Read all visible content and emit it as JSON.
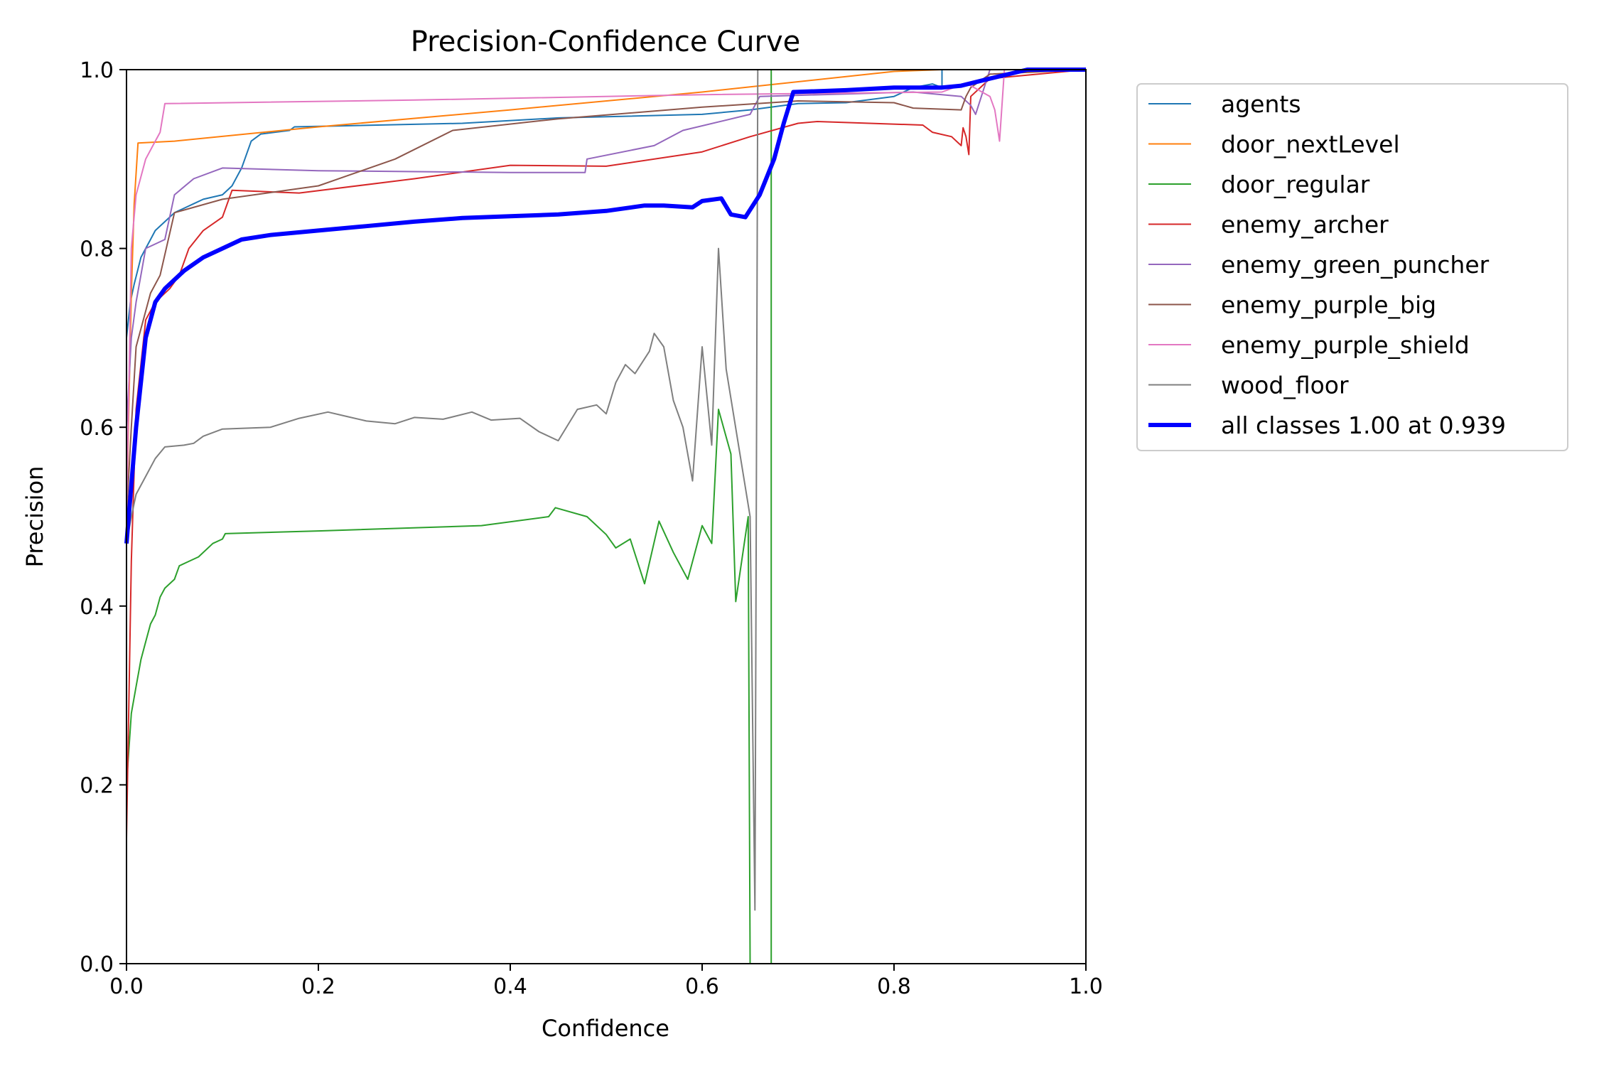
{
  "chart_data": {
    "type": "line",
    "title": "Precision-Confidence Curve",
    "xlabel": "Confidence",
    "ylabel": "Precision",
    "xlim": [
      0,
      1
    ],
    "ylim": [
      0,
      1
    ],
    "xticks": [
      "0.0",
      "0.2",
      "0.4",
      "0.6",
      "0.8",
      "1.0"
    ],
    "yticks": [
      "0.0",
      "0.2",
      "0.4",
      "0.6",
      "0.8",
      "1.0"
    ],
    "grid": false,
    "legend_position": "outside-right-top",
    "series": [
      {
        "name": "agents",
        "color": "#1f77b4",
        "width": 2,
        "points": [
          [
            0.0,
            0.7
          ],
          [
            0.004,
            0.74
          ],
          [
            0.008,
            0.76
          ],
          [
            0.015,
            0.79
          ],
          [
            0.02,
            0.8
          ],
          [
            0.025,
            0.81
          ],
          [
            0.03,
            0.82
          ],
          [
            0.04,
            0.83
          ],
          [
            0.05,
            0.84
          ],
          [
            0.06,
            0.845
          ],
          [
            0.07,
            0.85
          ],
          [
            0.08,
            0.855
          ],
          [
            0.1,
            0.86
          ],
          [
            0.11,
            0.87
          ],
          [
            0.12,
            0.89
          ],
          [
            0.13,
            0.92
          ],
          [
            0.14,
            0.928
          ],
          [
            0.17,
            0.932
          ],
          [
            0.175,
            0.936
          ],
          [
            0.35,
            0.94
          ],
          [
            0.45,
            0.946
          ],
          [
            0.6,
            0.95
          ],
          [
            0.65,
            0.955
          ],
          [
            0.7,
            0.962
          ],
          [
            0.75,
            0.963
          ],
          [
            0.8,
            0.97
          ],
          [
            0.82,
            0.98
          ],
          [
            0.84,
            0.984
          ],
          [
            0.85,
            0.98
          ],
          [
            0.85,
            1.0
          ],
          [
            1.0,
            1.0
          ]
        ]
      },
      {
        "name": "door_nextLevel",
        "color": "#ff7f0e",
        "width": 2,
        "points": [
          [
            0.0,
            0.5
          ],
          [
            0.005,
            0.75
          ],
          [
            0.008,
            0.85
          ],
          [
            0.012,
            0.918
          ],
          [
            0.05,
            0.92
          ],
          [
            0.2,
            0.936
          ],
          [
            0.4,
            0.955
          ],
          [
            0.6,
            0.975
          ],
          [
            0.8,
            0.998
          ],
          [
            0.85,
            1.0
          ],
          [
            1.0,
            1.0
          ]
        ]
      },
      {
        "name": "door_regular",
        "color": "#2ca02c",
        "width": 2,
        "points": [
          [
            0.0,
            0.2
          ],
          [
            0.005,
            0.28
          ],
          [
            0.01,
            0.31
          ],
          [
            0.015,
            0.34
          ],
          [
            0.02,
            0.36
          ],
          [
            0.025,
            0.38
          ],
          [
            0.03,
            0.39
          ],
          [
            0.035,
            0.41
          ],
          [
            0.04,
            0.42
          ],
          [
            0.05,
            0.43
          ],
          [
            0.055,
            0.445
          ],
          [
            0.065,
            0.45
          ],
          [
            0.075,
            0.455
          ],
          [
            0.09,
            0.47
          ],
          [
            0.1,
            0.475
          ],
          [
            0.103,
            0.481
          ],
          [
            0.2,
            0.484
          ],
          [
            0.37,
            0.49
          ],
          [
            0.44,
            0.5
          ],
          [
            0.447,
            0.51
          ],
          [
            0.48,
            0.5
          ],
          [
            0.5,
            0.48
          ],
          [
            0.51,
            0.465
          ],
          [
            0.525,
            0.475
          ],
          [
            0.54,
            0.425
          ],
          [
            0.555,
            0.495
          ],
          [
            0.57,
            0.46
          ],
          [
            0.585,
            0.43
          ],
          [
            0.6,
            0.49
          ],
          [
            0.61,
            0.47
          ],
          [
            0.617,
            0.62
          ],
          [
            0.63,
            0.57
          ],
          [
            0.635,
            0.405
          ],
          [
            0.648,
            0.5
          ],
          [
            0.65,
            0.0
          ],
          [
            0.672,
            0.0
          ],
          [
            0.672,
            1.0
          ]
        ]
      },
      {
        "name": "enemy_archer",
        "color": "#d62728",
        "width": 2,
        "points": [
          [
            0.0,
            0.14
          ],
          [
            0.005,
            0.45
          ],
          [
            0.01,
            0.62
          ],
          [
            0.02,
            0.72
          ],
          [
            0.03,
            0.74
          ],
          [
            0.045,
            0.755
          ],
          [
            0.055,
            0.77
          ],
          [
            0.065,
            0.8
          ],
          [
            0.08,
            0.82
          ],
          [
            0.1,
            0.835
          ],
          [
            0.11,
            0.865
          ],
          [
            0.18,
            0.862
          ],
          [
            0.3,
            0.878
          ],
          [
            0.4,
            0.893
          ],
          [
            0.5,
            0.892
          ],
          [
            0.6,
            0.908
          ],
          [
            0.65,
            0.925
          ],
          [
            0.7,
            0.94
          ],
          [
            0.72,
            0.942
          ],
          [
            0.83,
            0.938
          ],
          [
            0.84,
            0.93
          ],
          [
            0.86,
            0.925
          ],
          [
            0.87,
            0.915
          ],
          [
            0.872,
            0.935
          ],
          [
            0.875,
            0.925
          ],
          [
            0.878,
            0.905
          ],
          [
            0.88,
            0.97
          ],
          [
            0.9,
            0.99
          ],
          [
            1.0,
            1.0
          ]
        ]
      },
      {
        "name": "enemy_green_puncher",
        "color": "#9467bd",
        "width": 2,
        "points": [
          [
            0.0,
            0.6
          ],
          [
            0.005,
            0.7
          ],
          [
            0.01,
            0.74
          ],
          [
            0.02,
            0.8
          ],
          [
            0.04,
            0.81
          ],
          [
            0.05,
            0.86
          ],
          [
            0.07,
            0.878
          ],
          [
            0.1,
            0.89
          ],
          [
            0.2,
            0.887
          ],
          [
            0.4,
            0.885
          ],
          [
            0.478,
            0.885
          ],
          [
            0.48,
            0.9
          ],
          [
            0.55,
            0.915
          ],
          [
            0.58,
            0.932
          ],
          [
            0.65,
            0.95
          ],
          [
            0.66,
            0.97
          ],
          [
            0.82,
            0.975
          ],
          [
            0.87,
            0.97
          ],
          [
            0.88,
            0.96
          ],
          [
            0.885,
            0.95
          ],
          [
            0.9,
            1.0
          ],
          [
            1.0,
            1.0
          ]
        ]
      },
      {
        "name": "enemy_purple_big",
        "color": "#8c564b",
        "width": 2,
        "points": [
          [
            0.0,
            0.5
          ],
          [
            0.005,
            0.6
          ],
          [
            0.01,
            0.69
          ],
          [
            0.025,
            0.75
          ],
          [
            0.035,
            0.77
          ],
          [
            0.05,
            0.84
          ],
          [
            0.1,
            0.855
          ],
          [
            0.2,
            0.87
          ],
          [
            0.28,
            0.9
          ],
          [
            0.34,
            0.932
          ],
          [
            0.45,
            0.945
          ],
          [
            0.6,
            0.958
          ],
          [
            0.7,
            0.965
          ],
          [
            0.8,
            0.963
          ],
          [
            0.82,
            0.957
          ],
          [
            0.87,
            0.955
          ],
          [
            0.875,
            0.97
          ],
          [
            0.88,
            0.98
          ],
          [
            0.9,
            0.995
          ],
          [
            1.0,
            1.0
          ]
        ]
      },
      {
        "name": "enemy_purple_shield",
        "color": "#e377c2",
        "width": 2,
        "points": [
          [
            0.0,
            0.5
          ],
          [
            0.005,
            0.8
          ],
          [
            0.01,
            0.86
          ],
          [
            0.02,
            0.9
          ],
          [
            0.03,
            0.92
          ],
          [
            0.035,
            0.93
          ],
          [
            0.04,
            0.962
          ],
          [
            0.3,
            0.966
          ],
          [
            0.6,
            0.972
          ],
          [
            0.85,
            0.975
          ],
          [
            0.875,
            0.985
          ],
          [
            0.9,
            0.97
          ],
          [
            0.905,
            0.955
          ],
          [
            0.91,
            0.92
          ],
          [
            0.915,
            1.0
          ],
          [
            1.0,
            1.0
          ]
        ]
      },
      {
        "name": "wood_floor",
        "color": "#7f7f7f",
        "width": 2,
        "points": [
          [
            0.0,
            0.47
          ],
          [
            0.005,
            0.5
          ],
          [
            0.01,
            0.525
          ],
          [
            0.02,
            0.545
          ],
          [
            0.03,
            0.565
          ],
          [
            0.04,
            0.578
          ],
          [
            0.06,
            0.58
          ],
          [
            0.07,
            0.582
          ],
          [
            0.08,
            0.59
          ],
          [
            0.1,
            0.598
          ],
          [
            0.15,
            0.6
          ],
          [
            0.18,
            0.61
          ],
          [
            0.21,
            0.617
          ],
          [
            0.23,
            0.612
          ],
          [
            0.25,
            0.607
          ],
          [
            0.28,
            0.604
          ],
          [
            0.3,
            0.611
          ],
          [
            0.33,
            0.609
          ],
          [
            0.36,
            0.617
          ],
          [
            0.38,
            0.608
          ],
          [
            0.41,
            0.61
          ],
          [
            0.43,
            0.595
          ],
          [
            0.45,
            0.585
          ],
          [
            0.47,
            0.62
          ],
          [
            0.49,
            0.625
          ],
          [
            0.5,
            0.615
          ],
          [
            0.51,
            0.65
          ],
          [
            0.52,
            0.67
          ],
          [
            0.53,
            0.66
          ],
          [
            0.545,
            0.685
          ],
          [
            0.55,
            0.705
          ],
          [
            0.56,
            0.69
          ],
          [
            0.57,
            0.63
          ],
          [
            0.58,
            0.6
          ],
          [
            0.59,
            0.54
          ],
          [
            0.6,
            0.69
          ],
          [
            0.61,
            0.58
          ],
          [
            0.617,
            0.8
          ],
          [
            0.625,
            0.665
          ],
          [
            0.65,
            0.5
          ],
          [
            0.655,
            0.06
          ],
          [
            0.658,
            1.0
          ]
        ]
      },
      {
        "name": "all classes 1.00 at 0.939",
        "color": "#0000ff",
        "width": 6,
        "points": [
          [
            0.0,
            0.47
          ],
          [
            0.01,
            0.6
          ],
          [
            0.02,
            0.7
          ],
          [
            0.03,
            0.74
          ],
          [
            0.04,
            0.755
          ],
          [
            0.06,
            0.775
          ],
          [
            0.08,
            0.79
          ],
          [
            0.1,
            0.8
          ],
          [
            0.12,
            0.81
          ],
          [
            0.15,
            0.815
          ],
          [
            0.2,
            0.82
          ],
          [
            0.25,
            0.825
          ],
          [
            0.3,
            0.83
          ],
          [
            0.35,
            0.834
          ],
          [
            0.4,
            0.836
          ],
          [
            0.45,
            0.838
          ],
          [
            0.5,
            0.842
          ],
          [
            0.54,
            0.848
          ],
          [
            0.56,
            0.848
          ],
          [
            0.59,
            0.846
          ],
          [
            0.6,
            0.853
          ],
          [
            0.62,
            0.856
          ],
          [
            0.63,
            0.838
          ],
          [
            0.645,
            0.835
          ],
          [
            0.66,
            0.86
          ],
          [
            0.675,
            0.9
          ],
          [
            0.685,
            0.94
          ],
          [
            0.695,
            0.975
          ],
          [
            0.75,
            0.977
          ],
          [
            0.8,
            0.98
          ],
          [
            0.85,
            0.98
          ],
          [
            0.87,
            0.982
          ],
          [
            0.9,
            0.99
          ],
          [
            0.939,
            1.0
          ],
          [
            1.0,
            1.0
          ]
        ]
      }
    ]
  }
}
